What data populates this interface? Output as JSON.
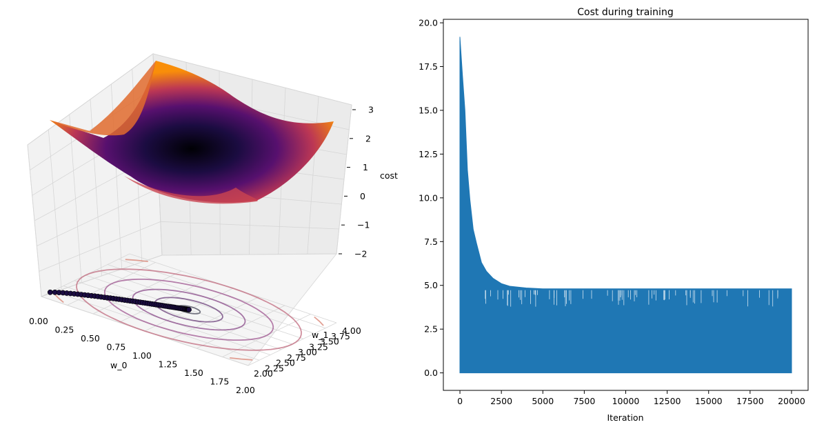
{
  "chart_data": [
    {
      "type": "surface3d",
      "title": "",
      "xlabel": "w_0",
      "ylabel": "w_1",
      "zlabel": "cost",
      "xlim": [
        0.0,
        2.0
      ],
      "ylim": [
        2.0,
        4.0
      ],
      "zlim": [
        -2,
        3
      ],
      "xticks": [
        "0.00",
        "0.25",
        "0.50",
        "0.75",
        "1.00",
        "1.25",
        "1.50",
        "1.75",
        "2.00"
      ],
      "yticks": [
        "2.00",
        "2.25",
        "2.50",
        "2.75",
        "3.00",
        "3.25",
        "3.50",
        "3.75",
        "4.00"
      ],
      "zticks": [
        "3",
        "2",
        "1",
        "0",
        "−1",
        "−2"
      ],
      "colormap": "inferno",
      "surface_minimum": {
        "w_0": 1.0,
        "w_1": 3.0
      },
      "contour_offset_z": -2,
      "trajectory": {
        "start": [
          0.0,
          2.2
        ],
        "end": [
          1.0,
          3.0
        ]
      },
      "grid": true
    },
    {
      "type": "line",
      "title": "Cost during training",
      "xlabel": "Iteration",
      "ylabel": "",
      "xlim": [
        -1000,
        21000
      ],
      "ylim": [
        -1.0,
        20.2
      ],
      "xticks": [
        "0",
        "2500",
        "5000",
        "7500",
        "10000",
        "12500",
        "15000",
        "17500",
        "20000"
      ],
      "yticks": [
        "0.0",
        "2.5",
        "5.0",
        "7.5",
        "10.0",
        "12.5",
        "15.0",
        "17.5",
        "20.0"
      ],
      "series": [
        {
          "color": "#1f77b4",
          "lower_bound": 0.0,
          "upper_envelope": {
            "x": [
              0,
              150,
              300,
              450,
              600,
              800,
              1000,
              1300,
              1600,
              2000,
              2500,
              3000,
              4000,
              5000,
              7500,
              10000,
              12500,
              15000,
              17500,
              20000
            ],
            "y": [
              19.2,
              17.0,
              15.0,
              11.6,
              9.9,
              8.2,
              7.4,
              6.3,
              5.8,
              5.4,
              5.1,
              4.95,
              4.85,
              4.8,
              4.8,
              4.8,
              4.8,
              4.8,
              4.8,
              4.8
            ]
          }
        }
      ],
      "grid": false
    }
  ]
}
